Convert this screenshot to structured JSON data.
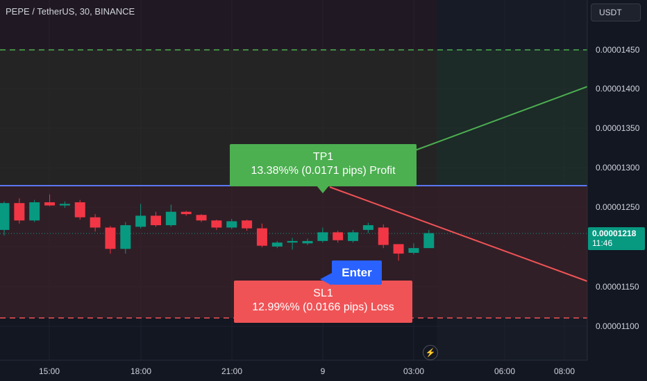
{
  "header": {
    "symbol_title": "PEPE / TetherUS, 30, BINANCE",
    "currency_button": "USDT"
  },
  "price_axis": {
    "labels": [
      "0.00001450",
      "0.00001400",
      "0.00001350",
      "0.00001300",
      "0.00001250",
      "0.00001150",
      "0.00001100"
    ],
    "current_price": "0.00001218",
    "countdown": "11:46"
  },
  "time_axis": {
    "labels": [
      "15:00",
      "18:00",
      "21:00",
      "9",
      "03:00",
      "06:00",
      "08:00"
    ]
  },
  "take_profit": {
    "title": "TP1",
    "detail": "13.38%% (0.0171 pips) Profit"
  },
  "stop_loss": {
    "title": "SL1",
    "detail": "12.99%% (0.0166 pips) Loss"
  },
  "entry": {
    "label": "Enter"
  },
  "lightning_icon": "lightning-icon",
  "colors": {
    "background": "#131722",
    "up_candle": "#089981",
    "down_candle": "#f23645",
    "tp_green": "#4caf50",
    "sl_red": "#f05356",
    "enter_blue": "#2962ff",
    "entry_line": "#2962ff"
  },
  "chart_data": {
    "type": "candlestick",
    "title": "PEPE / TetherUS, 30, BINANCE",
    "ylim": [
      1.08e-05,
      1.47e-05
    ],
    "candles": [
      {
        "o": 1.222e-05,
        "h": 1.258e-05,
        "l": 1.215e-05,
        "c": 1.256e-05
      },
      {
        "o": 1.256e-05,
        "h": 1.262e-05,
        "l": 1.23e-05,
        "c": 1.234e-05
      },
      {
        "o": 1.234e-05,
        "h": 1.26e-05,
        "l": 1.232e-05,
        "c": 1.257e-05
      },
      {
        "o": 1.257e-05,
        "h": 1.267e-05,
        "l": 1.252e-05,
        "c": 1.253e-05
      },
      {
        "o": 1.253e-05,
        "h": 1.258e-05,
        "l": 1.25e-05,
        "c": 1.255e-05
      },
      {
        "o": 1.257e-05,
        "h": 1.26e-05,
        "l": 1.235e-05,
        "c": 1.238e-05
      },
      {
        "o": 1.238e-05,
        "h": 1.242e-05,
        "l": 1.22e-05,
        "c": 1.225e-05
      },
      {
        "o": 1.225e-05,
        "h": 1.227e-05,
        "l": 1.192e-05,
        "c": 1.198e-05
      },
      {
        "o": 1.198e-05,
        "h": 1.232e-05,
        "l": 1.192e-05,
        "c": 1.228e-05
      },
      {
        "o": 1.226e-05,
        "h": 1.255e-05,
        "l": 1.224e-05,
        "c": 1.24e-05
      },
      {
        "o": 1.24e-05,
        "h": 1.245e-05,
        "l": 1.226e-05,
        "c": 1.228e-05
      },
      {
        "o": 1.228e-05,
        "h": 1.254e-05,
        "l": 1.226e-05,
        "c": 1.245e-05
      },
      {
        "o": 1.245e-05,
        "h": 1.246e-05,
        "l": 1.24e-05,
        "c": 1.242e-05
      },
      {
        "o": 1.241e-05,
        "h": 1.242e-05,
        "l": 1.232e-05,
        "c": 1.234e-05
      },
      {
        "o": 1.234e-05,
        "h": 1.235e-05,
        "l": 1.222e-05,
        "c": 1.225e-05
      },
      {
        "o": 1.225e-05,
        "h": 1.236e-05,
        "l": 1.223e-05,
        "c": 1.233e-05
      },
      {
        "o": 1.234e-05,
        "h": 1.235e-05,
        "l": 1.221e-05,
        "c": 1.224e-05
      },
      {
        "o": 1.224e-05,
        "h": 1.23e-05,
        "l": 1.2e-05,
        "c": 1.202e-05
      },
      {
        "o": 1.201e-05,
        "h": 1.208e-05,
        "l": 1.199e-05,
        "c": 1.206e-05
      },
      {
        "o": 1.206e-05,
        "h": 1.212e-05,
        "l": 1.197e-05,
        "c": 1.208e-05
      },
      {
        "o": 1.205e-05,
        "h": 1.211e-05,
        "l": 1.203e-05,
        "c": 1.208e-05
      },
      {
        "o": 1.208e-05,
        "h": 1.225e-05,
        "l": 1.206e-05,
        "c": 1.219e-05
      },
      {
        "o": 1.219e-05,
        "h": 1.221e-05,
        "l": 1.206e-05,
        "c": 1.209e-05
      },
      {
        "o": 1.208e-05,
        "h": 1.222e-05,
        "l": 1.206e-05,
        "c": 1.219e-05
      },
      {
        "o": 1.222e-05,
        "h": 1.231e-05,
        "l": 1.218e-05,
        "c": 1.228e-05
      },
      {
        "o": 1.225e-05,
        "h": 1.229e-05,
        "l": 1.199e-05,
        "c": 1.203e-05
      },
      {
        "o": 1.204e-05,
        "h": 1.204e-05,
        "l": 1.183e-05,
        "c": 1.192e-05
      },
      {
        "o": 1.193e-05,
        "h": 1.205e-05,
        "l": 1.191e-05,
        "c": 1.199e-05
      },
      {
        "o": 1.199e-05,
        "h": 1.222e-05,
        "l": 1.199e-05,
        "c": 1.218e-05
      }
    ],
    "levels": {
      "take_profit": 1.45e-05,
      "entry": 1.278e-05,
      "stop_loss": 1.11e-05,
      "current": 1.218e-05
    },
    "tp_line": [
      1.316e-05,
      1.404e-05
    ],
    "sl_line": [
      1.278e-05,
      1.155e-05
    ],
    "grid": true
  }
}
